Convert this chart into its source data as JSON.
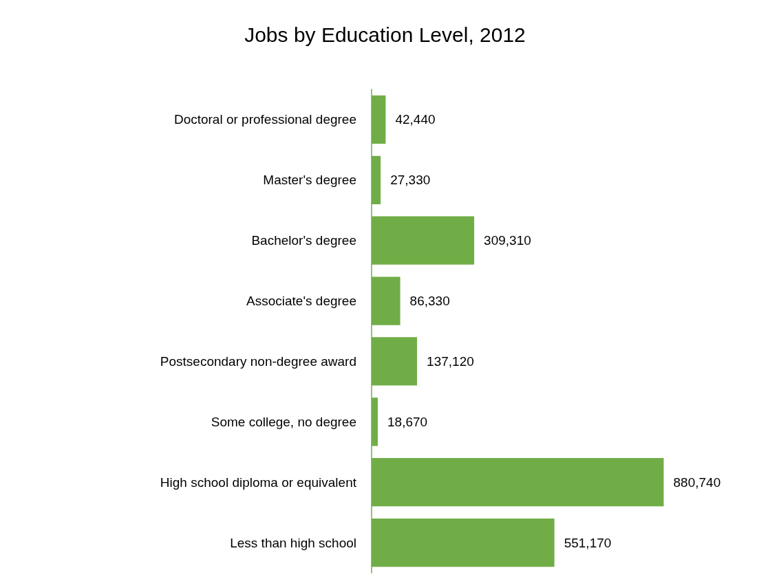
{
  "chart_data": {
    "type": "bar",
    "orientation": "horizontal",
    "title": "Jobs by Education Level, 2012",
    "categories": [
      "Doctoral or professional degree",
      "Master's degree",
      "Bachelor's degree",
      "Associate's degree",
      "Postsecondary non-degree award",
      "Some college, no degree",
      "High school diploma or equivalent",
      "Less than high school"
    ],
    "values": [
      42440,
      27330,
      309310,
      86330,
      137120,
      18670,
      880740,
      551170
    ],
    "value_labels": [
      "42,440",
      "27,330",
      "309,310",
      "86,330",
      "137,120",
      "18,670",
      "880,740",
      "551,170"
    ],
    "color": "#70ad47",
    "grid": false
  }
}
